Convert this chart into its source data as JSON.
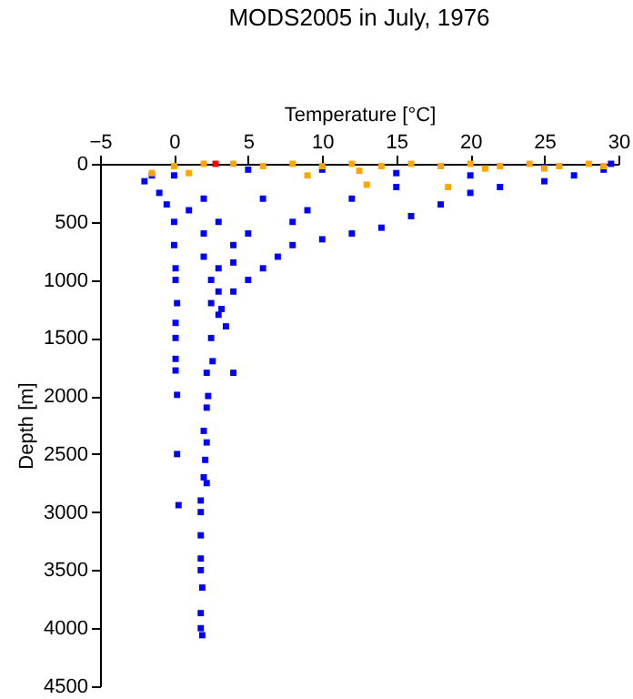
{
  "chart_data": {
    "type": "scatter",
    "title": "MODS2005 in July, 1976",
    "xlabel": "Temperature [°C]",
    "ylabel": "Depth [m]",
    "xlim": [
      -5,
      30
    ],
    "xticks": [
      -5,
      0,
      5,
      10,
      15,
      20,
      25,
      30
    ],
    "ylim": [
      4500,
      0
    ],
    "yticks": [
      0,
      500,
      1000,
      1500,
      2000,
      2500,
      3000,
      3500,
      4000,
      4500
    ],
    "grid": false,
    "legend": false,
    "marker": "square",
    "series": [
      {
        "color": "#0000ff",
        "x": [
          -2,
          -1.5,
          -1,
          -0.5,
          0,
          0,
          0,
          0.1,
          0.1,
          0.2,
          0.1,
          0.1,
          0.1,
          0.1,
          0.2,
          0.2,
          0.3,
          1,
          2,
          2,
          2,
          2.5,
          2.5,
          3,
          2.5,
          2.6,
          2.2,
          2.3,
          2.2,
          2,
          2.2,
          2.1,
          2,
          2.2,
          1.8,
          1.8,
          1.8,
          1.8,
          1.8,
          1.9,
          1.8,
          1.8,
          1.9,
          4,
          3.5,
          4,
          5,
          6,
          7,
          8,
          10,
          12,
          14,
          16,
          18,
          20,
          22,
          25,
          27,
          29,
          29.5,
          5,
          10,
          15,
          20,
          25,
          3,
          5,
          4,
          8,
          12,
          15,
          6,
          9,
          3,
          4,
          3,
          3.2
        ],
        "values": [
          150,
          100,
          250,
          350,
          100,
          500,
          700,
          900,
          1000,
          1200,
          1370,
          1500,
          1680,
          1780,
          1990,
          2500,
          2940,
          400,
          300,
          600,
          800,
          1000,
          1200,
          1300,
          1500,
          1700,
          1800,
          2000,
          2100,
          2300,
          2400,
          2550,
          2700,
          2750,
          2900,
          3000,
          3200,
          3400,
          3500,
          3650,
          3870,
          4000,
          4060,
          1800,
          1400,
          1100,
          1000,
          900,
          800,
          700,
          650,
          600,
          550,
          450,
          350,
          250,
          200,
          150,
          100,
          50,
          0,
          50,
          50,
          80,
          100,
          30,
          500,
          600,
          700,
          500,
          300,
          200,
          300,
          400,
          900,
          850,
          1100,
          1250
        ]
      },
      {
        "color": "#ffa500",
        "x": [
          0,
          2,
          4,
          6,
          8,
          10,
          12,
          14,
          16,
          18,
          20,
          22,
          24,
          26,
          28,
          29,
          -1.5,
          1,
          9,
          13,
          18.5,
          12.5,
          21,
          25
        ],
        "values": [
          20,
          0,
          0,
          20,
          0,
          20,
          0,
          20,
          0,
          20,
          0,
          20,
          0,
          20,
          0,
          20,
          80,
          80,
          100,
          180,
          200,
          60,
          40,
          40
        ]
      },
      {
        "color": "#ff0000",
        "x": [
          2.8
        ],
        "values": [
          0
        ]
      }
    ]
  }
}
